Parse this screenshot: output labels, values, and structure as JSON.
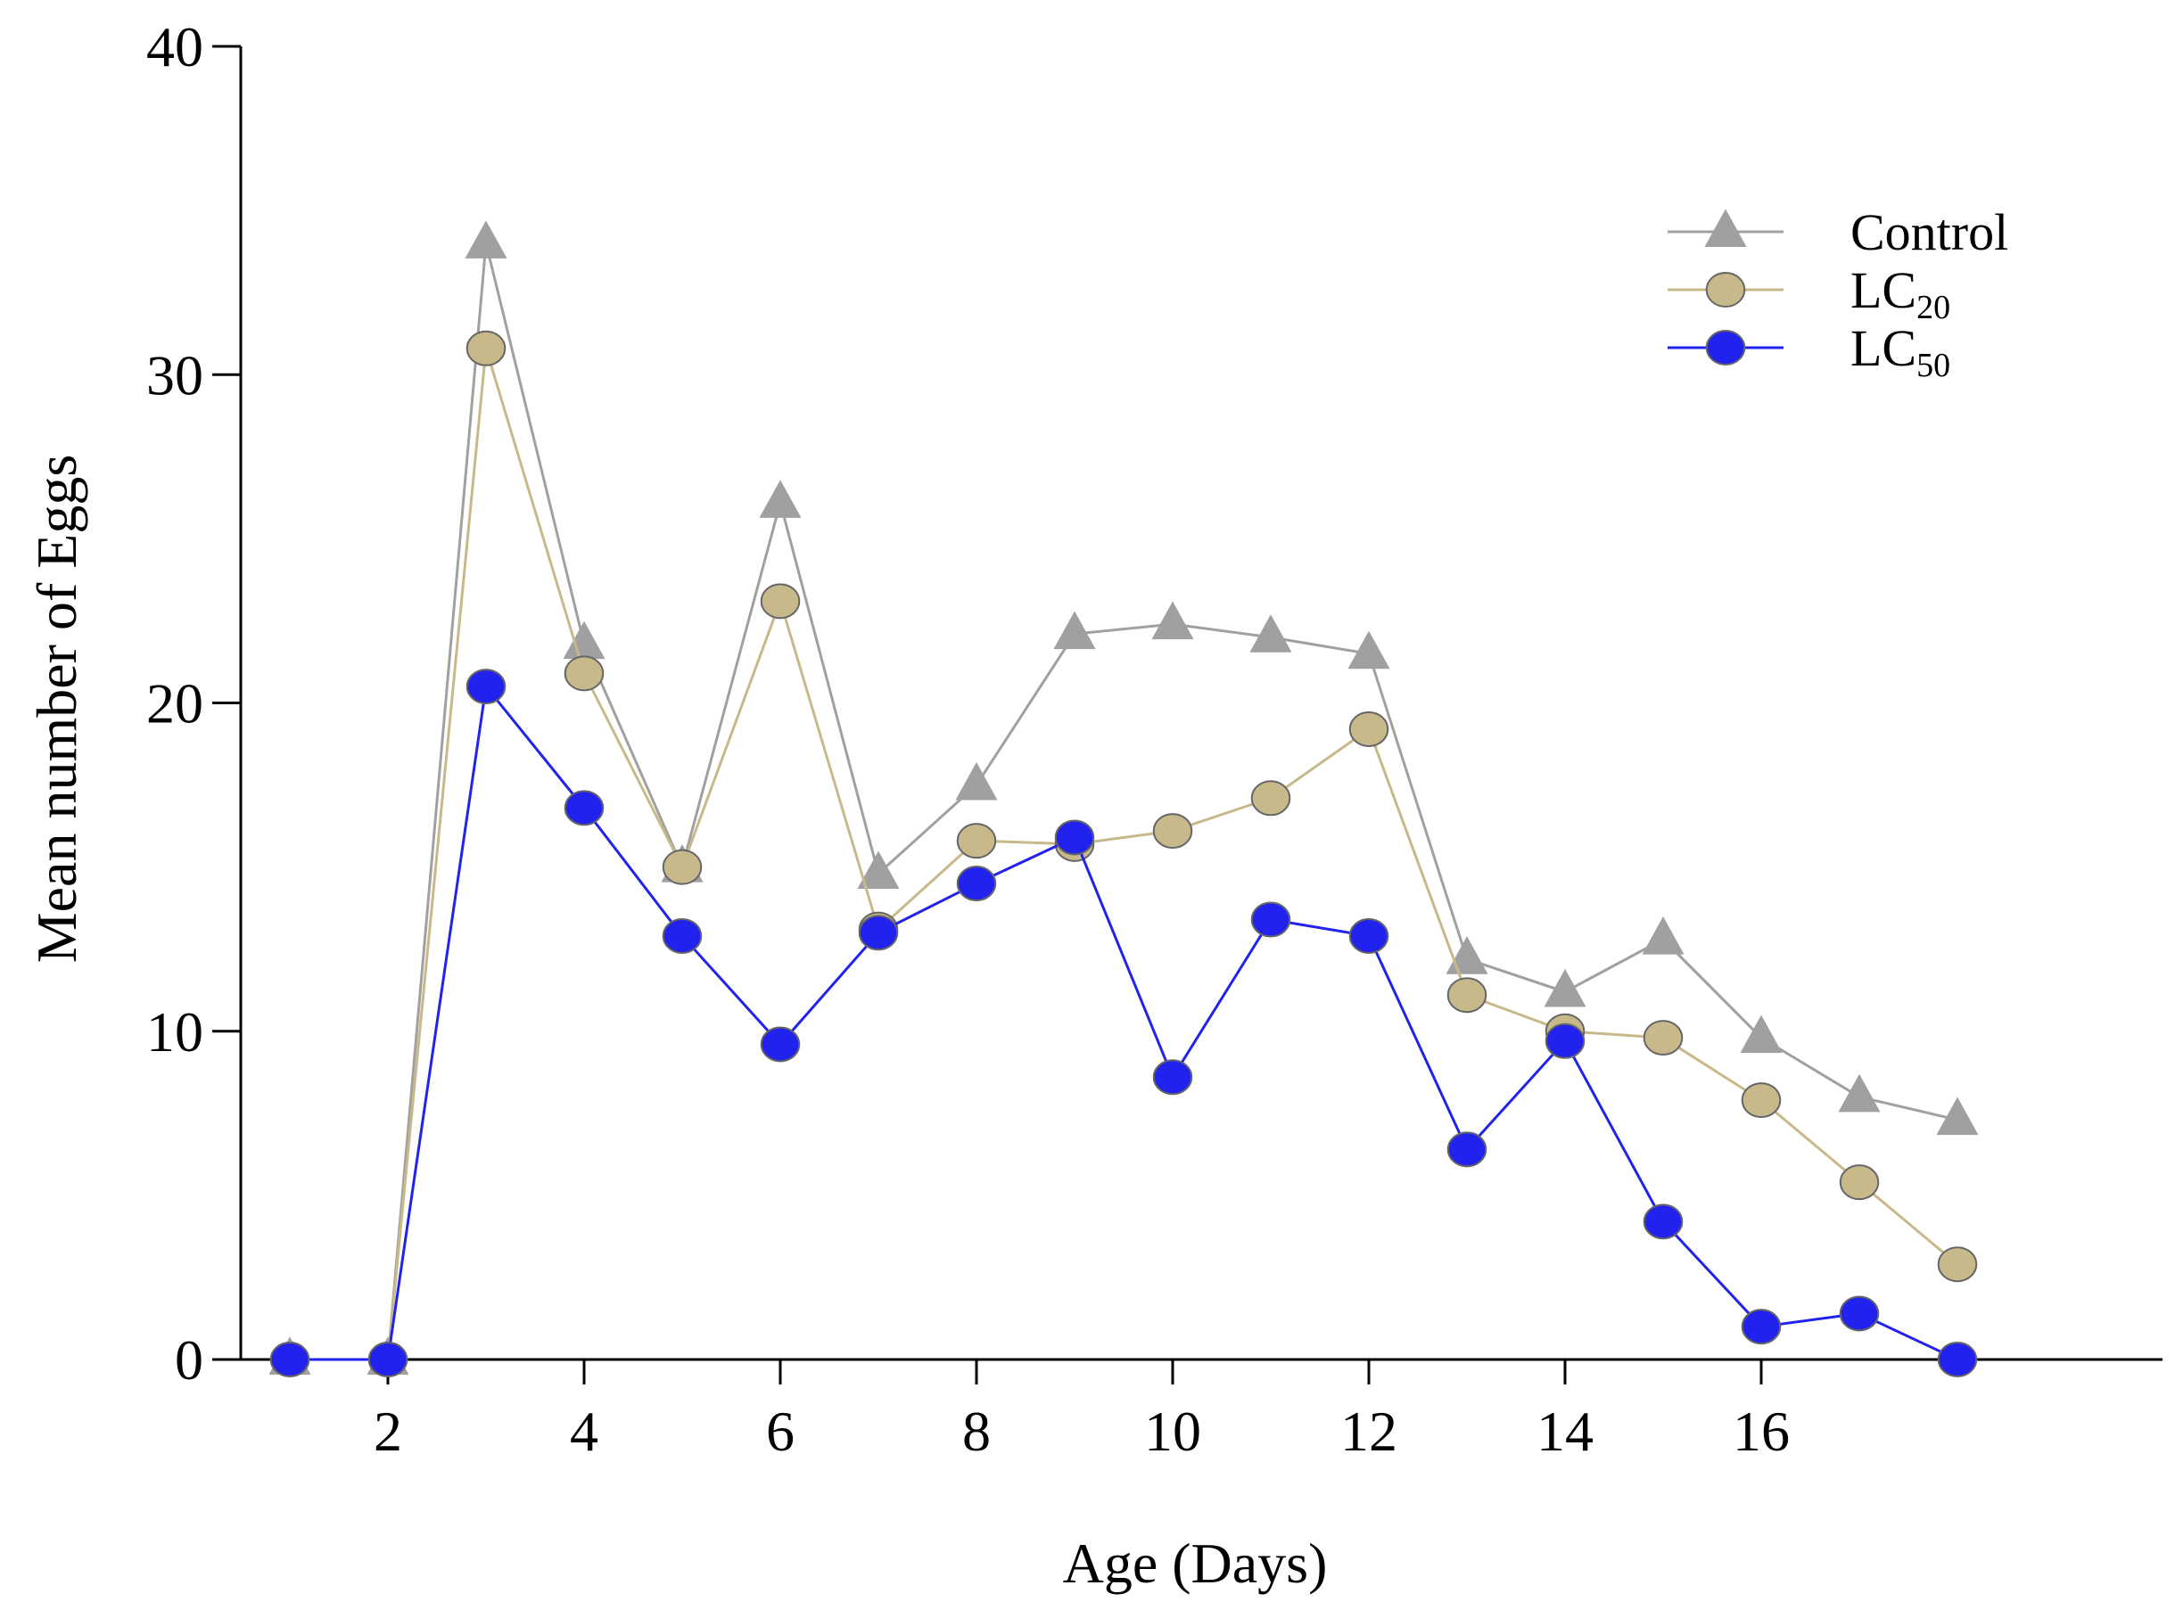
{
  "chart_data": {
    "type": "line",
    "xlabel": "Age (Days)",
    "ylabel": "Mean number of Eggs",
    "xlim": [
      0.5,
      19
    ],
    "ylim": [
      0,
      40
    ],
    "x_ticks": [
      2,
      4,
      6,
      8,
      10,
      12,
      14,
      16
    ],
    "y_ticks": [
      0,
      10,
      20,
      30,
      40
    ],
    "x_tick_labels": [
      "2",
      "4",
      "6",
      "8",
      "10",
      "12",
      "14",
      "16"
    ],
    "y_tick_labels": [
      "0",
      "10",
      "20",
      "30",
      "40"
    ],
    "grid": false,
    "legend_position": "top-right",
    "x": [
      1,
      2,
      3,
      4,
      5,
      6,
      7,
      8,
      9,
      10,
      11,
      12,
      13,
      14,
      15,
      16,
      17,
      18
    ],
    "series": [
      {
        "name": "Control",
        "legend": {
          "main": "Control",
          "sub": ""
        },
        "marker": "triangle",
        "color": "#a0a0a0",
        "values": [
          0,
          0,
          34,
          21.8,
          15,
          26.1,
          14.8,
          17.5,
          22.1,
          22.4,
          22,
          21.5,
          12.2,
          11.2,
          12.8,
          9.8,
          8,
          7.3
        ]
      },
      {
        "name": "LC20",
        "legend": {
          "main": "LC",
          "sub": "20"
        },
        "marker": "circle",
        "color": "#c8b98a",
        "values": [
          0,
          0,
          30.8,
          20.9,
          15,
          23.1,
          13.1,
          15.8,
          15.7,
          16.1,
          17.1,
          19.2,
          11.1,
          10,
          9.8,
          7.9,
          5.4,
          2.9
        ]
      },
      {
        "name": "LC50",
        "legend": {
          "main": "LC",
          "sub": "50"
        },
        "marker": "circle",
        "color": "#2222ee",
        "values": [
          0,
          0,
          20.5,
          16.8,
          12.9,
          9.6,
          13,
          14.5,
          15.9,
          8.6,
          13.4,
          12.9,
          6.4,
          9.7,
          4.2,
          1,
          1.4,
          0
        ]
      }
    ]
  }
}
